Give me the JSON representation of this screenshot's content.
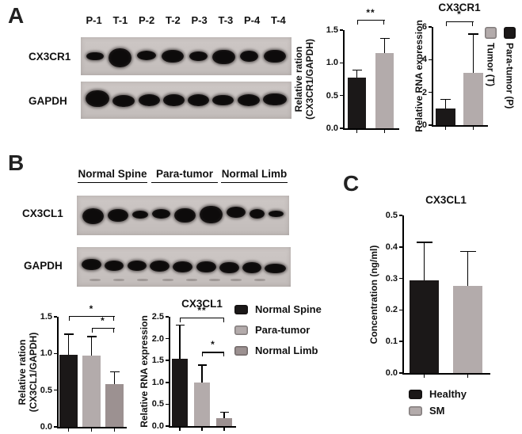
{
  "colors": {
    "black": "#1b1818",
    "light_gray": "#b3abab",
    "dark_gray": "#9c9191",
    "blot_background": "#c9c3c1"
  },
  "panels": {
    "a": {
      "label": "A",
      "lanes": [
        "P-1",
        "T-1",
        "P-2",
        "T-2",
        "P-3",
        "T-3",
        "P-4",
        "T-4"
      ],
      "rows": [
        {
          "label": "CX3CR1"
        },
        {
          "label": "GAPDH"
        }
      ],
      "legend": [
        {
          "label": "Tumor (T)",
          "color": "#b3abab"
        },
        {
          "label": "Para-tumor (P)",
          "color": "#1b1818"
        }
      ]
    },
    "b": {
      "label": "B",
      "groups": [
        "Normal Spine",
        "Para-tumor",
        "Normal Limb"
      ],
      "rows": [
        {
          "label": "CX3CL1"
        },
        {
          "label": "GAPDH"
        }
      ],
      "legend": [
        {
          "label": "Normal Spine",
          "color": "#1b1818"
        },
        {
          "label": "Para-tumor",
          "color": "#b3abab"
        },
        {
          "label": "Normal Limb",
          "color": "#9c9191"
        }
      ]
    },
    "c": {
      "label": "C",
      "legend": [
        {
          "label": "Healthy",
          "color": "#1b1818"
        },
        {
          "label": "SM",
          "color": "#b3abab"
        }
      ]
    }
  },
  "blots": {
    "a_cx3cr1": {
      "bands": [
        [
          0.82,
          0.78,
          0
        ],
        [
          1.12,
          1.65,
          2
        ],
        [
          0.95,
          0.8,
          -1
        ],
        [
          1.08,
          1.15,
          0
        ],
        [
          0.88,
          0.85,
          0
        ],
        [
          1.1,
          1.3,
          1
        ],
        [
          0.88,
          0.95,
          0
        ],
        [
          1.08,
          1.2,
          0
        ]
      ]
    },
    "a_gapdh": {
      "bands": [
        [
          1.1,
          1.35,
          -2
        ],
        [
          1.05,
          1.0,
          1
        ],
        [
          1.0,
          0.95,
          0
        ],
        [
          1.0,
          1.0,
          0
        ],
        [
          1.0,
          0.95,
          0
        ],
        [
          1.0,
          0.9,
          0
        ],
        [
          1.05,
          0.95,
          0
        ],
        [
          1.1,
          1.05,
          -1
        ]
      ]
    },
    "b_cx3cl1": {
      "bands": [
        [
          1.2,
          1.5,
          1
        ],
        [
          1.1,
          1.2,
          0
        ],
        [
          0.85,
          0.75,
          -1
        ],
        [
          1.0,
          0.9,
          -2
        ],
        [
          1.15,
          1.35,
          0
        ],
        [
          1.25,
          1.7,
          -1
        ],
        [
          1.05,
          1.05,
          -4
        ],
        [
          0.8,
          0.85,
          -2
        ],
        [
          0.85,
          0.65,
          -2
        ]
      ]
    },
    "b_gapdh": {
      "bands": [
        [
          1.05,
          1.1,
          -3
        ],
        [
          1.0,
          1.0,
          -2
        ],
        [
          1.0,
          1.0,
          -2
        ],
        [
          1.05,
          1.05,
          -1
        ],
        [
          1.05,
          1.05,
          0
        ],
        [
          1.05,
          1.1,
          0
        ],
        [
          1.05,
          1.1,
          1
        ],
        [
          1.0,
          1.05,
          1
        ],
        [
          1.1,
          0.95,
          2
        ]
      ],
      "smudges": [
        6,
        17,
        28,
        40,
        51,
        62,
        72,
        83
      ]
    }
  },
  "chart_data": [
    {
      "id": "a_protein",
      "type": "bar",
      "title": "",
      "ylabel": [
        "Relative ration",
        "(CX3CR1/GAPDH)"
      ],
      "categories": [
        "Para-tumor (P)",
        "Tumor (T)"
      ],
      "values": [
        0.77,
        1.15
      ],
      "errors": [
        0.13,
        0.23
      ],
      "colors": [
        "#1b1818",
        "#b3abab"
      ],
      "ymax": 1.5,
      "yticks": [
        "0.0",
        "0.5",
        "1.0",
        "1.5"
      ],
      "brackets": [
        {
          "from": 0,
          "to": 1,
          "label": "**",
          "y": 1.66
        }
      ]
    },
    {
      "id": "a_rna",
      "type": "bar",
      "title": "CX3CR1",
      "ylabel": [
        "Relative RNA expression"
      ],
      "categories": [
        "Para-tumor (P)",
        "Tumor (T)"
      ],
      "values": [
        1.0,
        3.2
      ],
      "errors": [
        0.6,
        2.4
      ],
      "colors": [
        "#1b1818",
        "#b3abab"
      ],
      "ymax": 6,
      "yticks": [
        "0",
        "2",
        "4",
        "6"
      ],
      "brackets": [
        {
          "from": 0,
          "to": 1,
          "label": "*",
          "y": 6.35
        }
      ]
    },
    {
      "id": "b_protein",
      "type": "bar",
      "title": "",
      "ylabel": [
        "Relative ration",
        "(CX3CL1/GAPDH)"
      ],
      "categories": [
        "Normal Spine",
        "Para-tumor",
        "Normal Limb"
      ],
      "values": [
        0.98,
        0.97,
        0.58
      ],
      "errors": [
        0.29,
        0.27,
        0.18
      ],
      "colors": [
        "#1b1818",
        "#b3abab",
        "#9c9191"
      ],
      "ymax": 1.5,
      "yticks": [
        "0.0",
        "0.5",
        "1.0",
        "1.5"
      ],
      "brackets": [
        {
          "from": 0,
          "to": 2,
          "label": "*",
          "y": 1.51
        },
        {
          "from": 1,
          "to": 2,
          "label": "*",
          "y": 1.35
        }
      ]
    },
    {
      "id": "b_rna",
      "type": "bar",
      "title": "CX3CL1",
      "ylabel": [
        "Relative RNA expression"
      ],
      "categories": [
        "Normal Spine",
        "Para-tumor",
        "Normal Limb"
      ],
      "values": [
        1.54,
        0.99,
        0.18
      ],
      "errors": [
        0.78,
        0.42,
        0.15
      ],
      "colors": [
        "#1b1818",
        "#b3abab",
        "#9c9191"
      ],
      "ymax": 2.5,
      "yticks": [
        "0.0",
        "0.5",
        "1.0",
        "1.5",
        "2.0",
        "2.5"
      ],
      "brackets": [
        {
          "from": 0,
          "to": 2,
          "label": "**",
          "y": 2.48
        },
        {
          "from": 1,
          "to": 2,
          "label": "*",
          "y": 1.7
        }
      ]
    },
    {
      "id": "c_elisa",
      "type": "bar",
      "title": "CX3CL1",
      "ylabel": [
        "Concentration (ng/ml)"
      ],
      "categories": [
        "Healthy",
        "SM"
      ],
      "values": [
        0.294,
        0.277
      ],
      "errors": [
        0.123,
        0.11
      ],
      "colors": [
        "#1b1818",
        "#b3abab"
      ],
      "ymax": 0.5,
      "yticks": [
        "0.0",
        "0.1",
        "0.2",
        "0.3",
        "0.4",
        "0.5"
      ]
    }
  ]
}
